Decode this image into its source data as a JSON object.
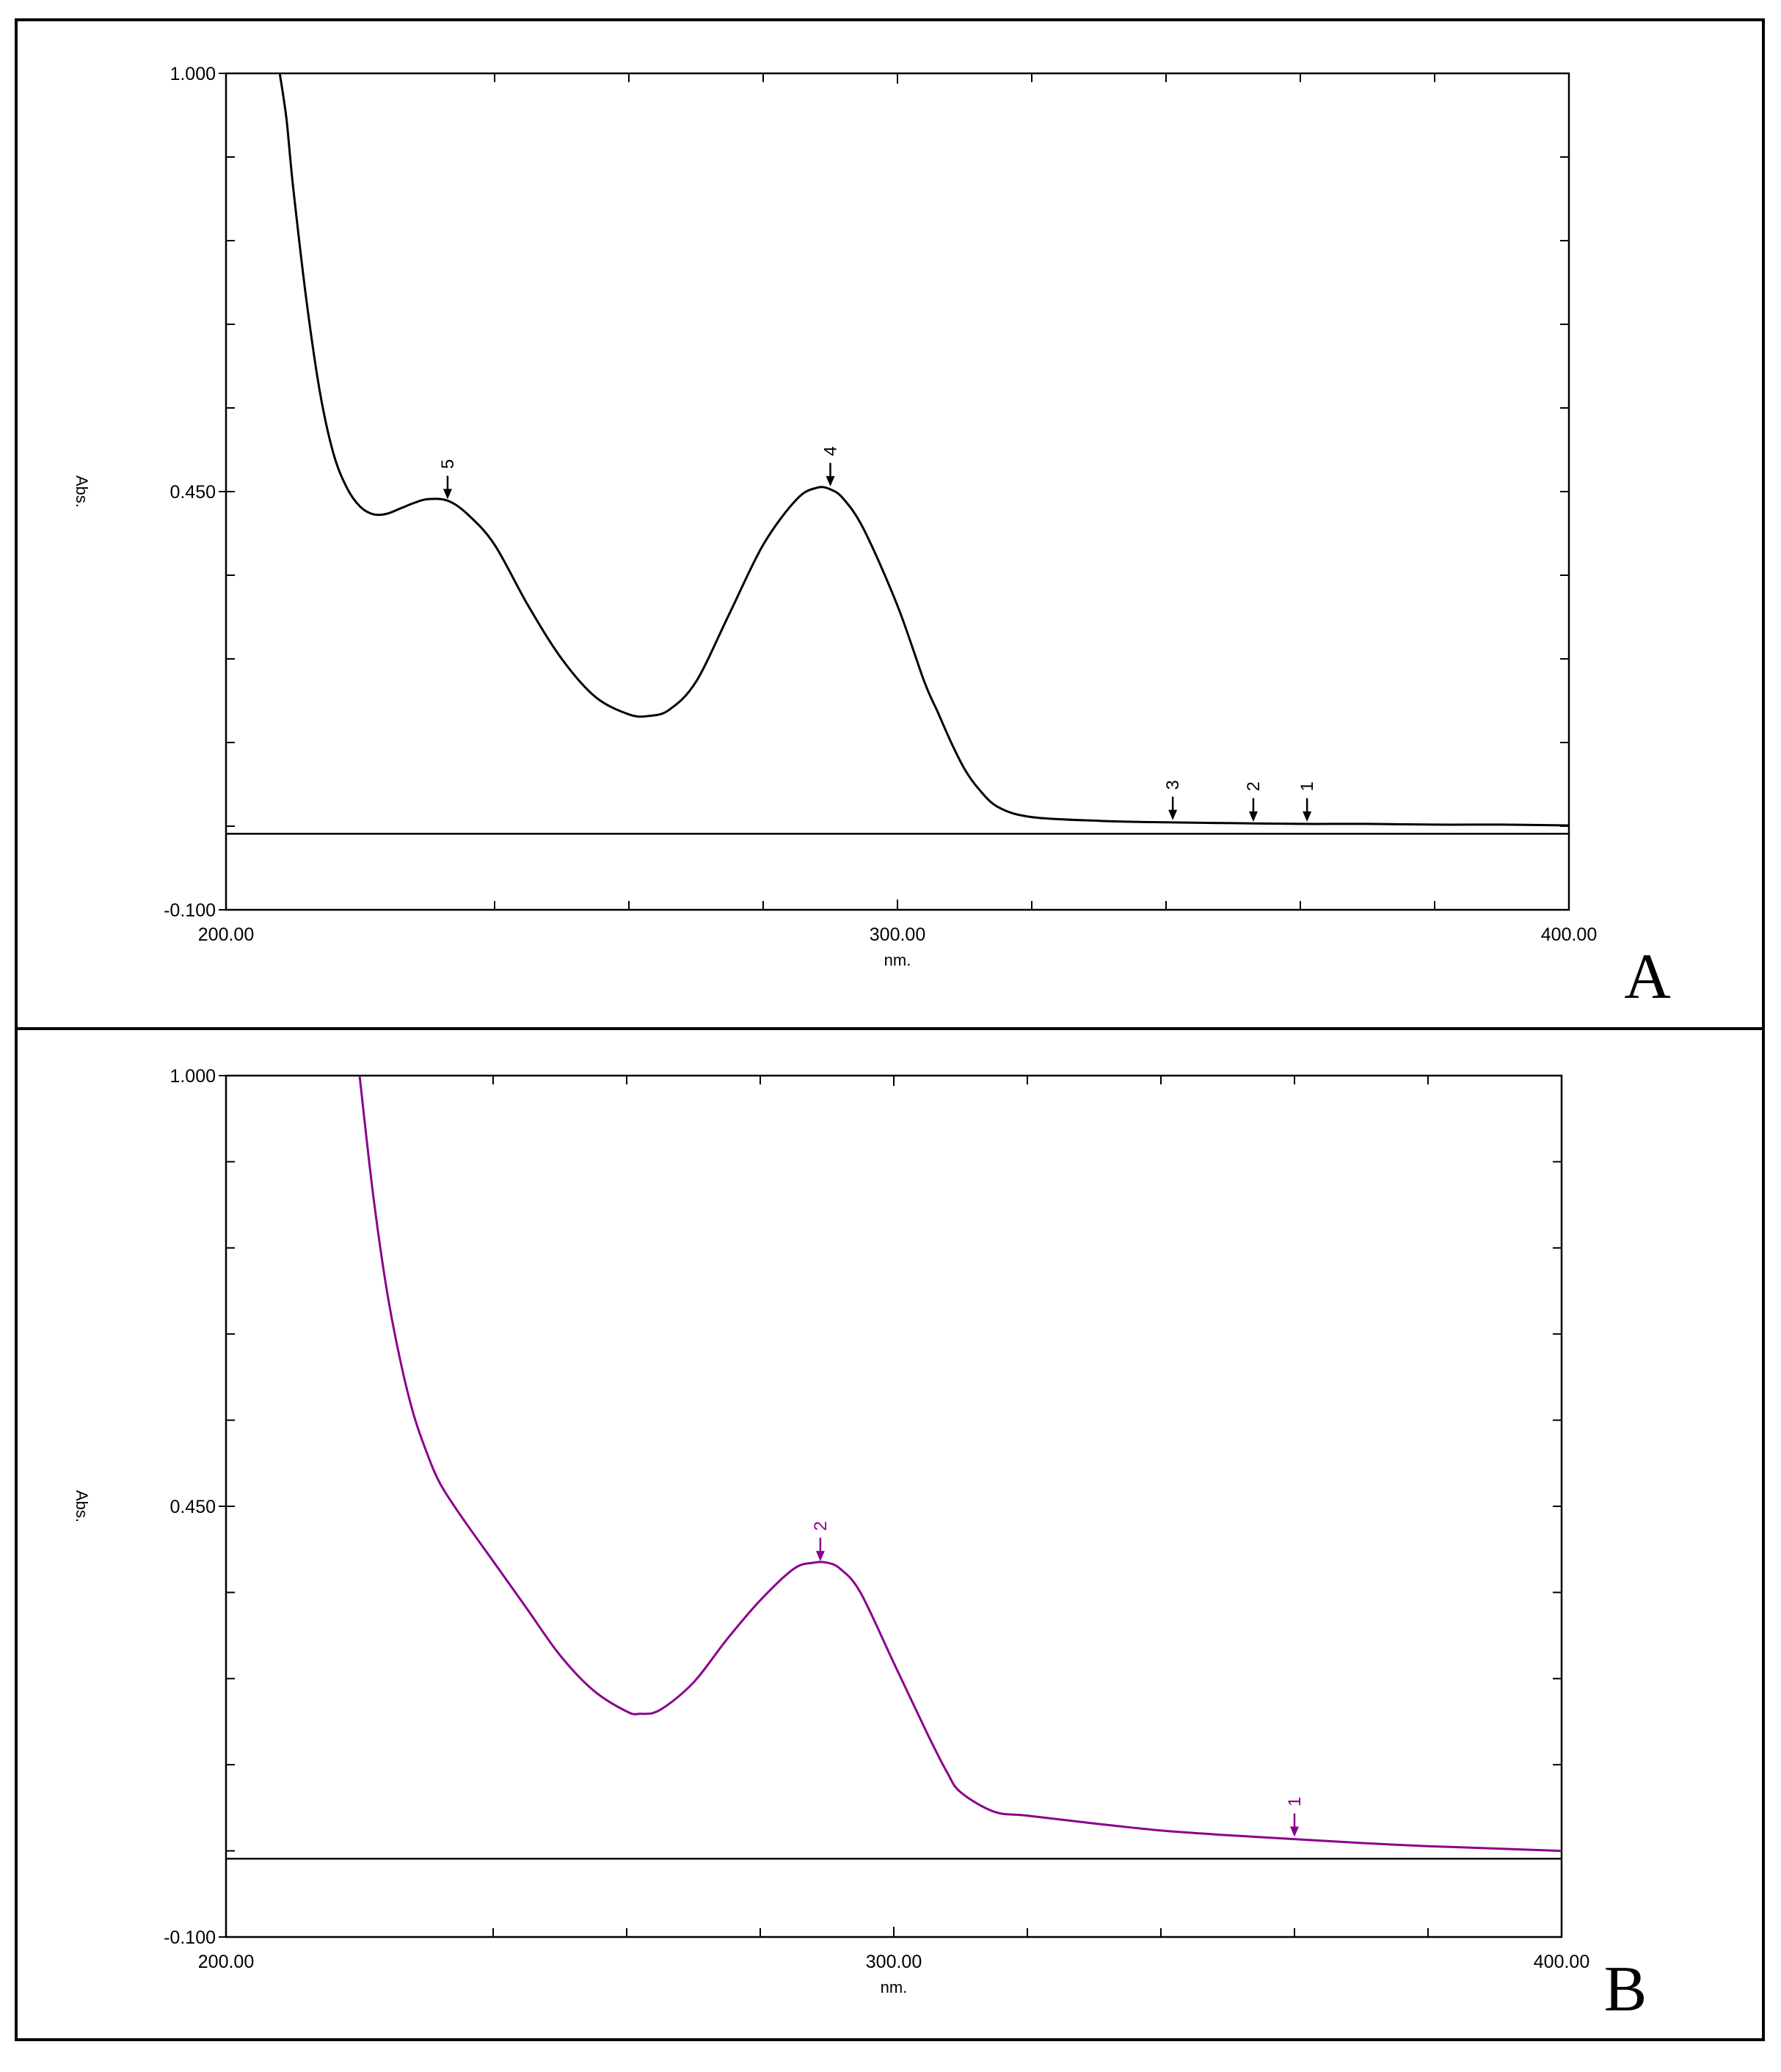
{
  "figure": {
    "colors": {
      "border": "#000000",
      "background": "#ffffff"
    }
  },
  "chart_data": [
    {
      "type": "line",
      "panel_label": "A",
      "xlabel": "nm.",
      "ylabel": "Abs.",
      "xlim": [
        200.0,
        400.0
      ],
      "ylim": [
        -0.1,
        1.0
      ],
      "x_tick_labels": [
        "200.00",
        "300.00",
        "400.00"
      ],
      "y_tick_labels": [
        "1.000",
        "0.450",
        "-0.100"
      ],
      "x_minor_ticks": [
        240,
        260,
        280,
        320,
        340,
        360,
        380
      ],
      "y_minor_ticks": [
        0.89,
        0.78,
        0.67,
        0.56,
        0.34,
        0.23,
        0.12,
        0.01
      ],
      "baseline": 0.0,
      "color": "#000000",
      "series": [
        {
          "x": [
            208,
            209,
            210,
            212,
            214,
            216,
            218,
            220,
            222,
            224,
            226,
            228,
            230,
            233,
            236,
            240,
            245,
            250,
            255,
            260,
            263,
            266,
            270,
            275,
            280,
            285,
            288,
            290,
            292,
            295,
            300,
            304,
            306,
            308,
            310,
            312,
            315,
            320,
            330,
            340,
            350,
            360,
            370,
            380,
            390,
            400
          ],
          "y": [
            1.0,
            0.94,
            0.85,
            0.7,
            0.58,
            0.5,
            0.455,
            0.43,
            0.42,
            0.421,
            0.428,
            0.435,
            0.44,
            0.438,
            0.42,
            0.38,
            0.3,
            0.23,
            0.18,
            0.157,
            0.155,
            0.163,
            0.2,
            0.29,
            0.38,
            0.44,
            0.455,
            0.453,
            0.44,
            0.4,
            0.3,
            0.2,
            0.16,
            0.12,
            0.085,
            0.06,
            0.035,
            0.022,
            0.017,
            0.015,
            0.014,
            0.013,
            0.013,
            0.012,
            0.012,
            0.011
          ]
        }
      ],
      "peaks": [
        {
          "label": "5",
          "x": 233,
          "y": 0.438
        },
        {
          "label": "4",
          "x": 290,
          "y": 0.455
        },
        {
          "label": "3",
          "x": 341,
          "y": 0.016
        },
        {
          "label": "2",
          "x": 353,
          "y": 0.014
        },
        {
          "label": "1",
          "x": 361,
          "y": 0.014
        }
      ]
    },
    {
      "type": "line",
      "panel_label": "B",
      "xlabel": "nm.",
      "ylabel": "Abs.",
      "xlim": [
        200.0,
        400.0
      ],
      "ylim": [
        -0.1,
        1.0
      ],
      "x_tick_labels": [
        "200.00",
        "300.00",
        "400.00"
      ],
      "y_tick_labels": [
        "1.000",
        "0.450",
        "-0.100"
      ],
      "x_minor_ticks": [
        240,
        260,
        280,
        320,
        340,
        360,
        380
      ],
      "y_minor_ticks": [
        0.89,
        0.78,
        0.67,
        0.56,
        0.34,
        0.23,
        0.12,
        0.01
      ],
      "baseline": 0.0,
      "color": "#8b008b",
      "series": [
        {
          "x": [
            220,
            222,
            224,
            226,
            228,
            230,
            232,
            235,
            240,
            245,
            250,
            255,
            260,
            262,
            265,
            270,
            275,
            280,
            285,
            288,
            290,
            292,
            295,
            300,
            305,
            308,
            310,
            315,
            320,
            330,
            340,
            350,
            360,
            370,
            380,
            390,
            400
          ],
          "y": [
            1.0,
            0.85,
            0.73,
            0.64,
            0.57,
            0.52,
            0.48,
            0.44,
            0.38,
            0.32,
            0.26,
            0.215,
            0.188,
            0.185,
            0.19,
            0.225,
            0.28,
            0.33,
            0.37,
            0.378,
            0.378,
            0.37,
            0.34,
            0.25,
            0.16,
            0.11,
            0.085,
            0.06,
            0.055,
            0.045,
            0.036,
            0.03,
            0.025,
            0.02,
            0.016,
            0.013,
            0.01
          ]
        }
      ],
      "peaks": [
        {
          "label": "2",
          "x": 289,
          "y": 0.378
        },
        {
          "label": "1",
          "x": 360,
          "y": 0.026
        }
      ]
    }
  ]
}
